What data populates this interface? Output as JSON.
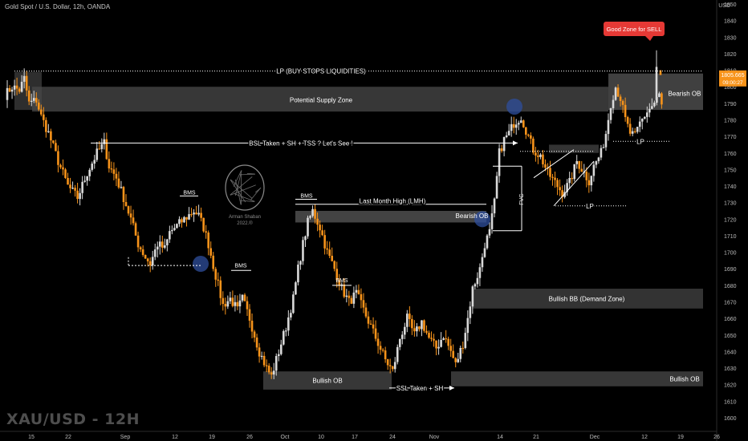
{
  "header": {
    "symbol_title": "Gold Spot / U.S. Dollar, 12h, OANDA",
    "currency": "USD"
  },
  "watermark": "XAU/USD - 12H",
  "logo": {
    "name": "brain-logo",
    "text_line1": "Arman Shaban",
    "text_line2": "2022.®"
  },
  "price_tag": {
    "value": "1805.665",
    "timer": "09:00:27",
    "color": "#f7931a"
  },
  "chart_data": {
    "type": "candlestick",
    "instrument": "Gold Spot / U.S. Dollar",
    "timeframe": "12h",
    "broker": "OANDA",
    "ylim": [
      1595,
      1855
    ],
    "y_ticks": [
      1600,
      1610,
      1620,
      1630,
      1640,
      1650,
      1660,
      1670,
      1680,
      1690,
      1700,
      1710,
      1720,
      1730,
      1740,
      1750,
      1760,
      1770,
      1780,
      1790,
      1800,
      1810,
      1820,
      1830,
      1840,
      1850
    ],
    "x_ticks": [
      "15",
      "22",
      "Sep",
      "12",
      "19",
      "26",
      "Oct",
      "10",
      "17",
      "24",
      "Nov",
      "14",
      "21",
      "Dec",
      "12",
      "19",
      "26"
    ],
    "colors": {
      "up": "#d9d9d9",
      "down": "#f7931a",
      "zone": "#4a4a4a",
      "circle": "#2f4f9e",
      "sell_label": "#e53935"
    },
    "candle_count": 200,
    "trend_path": [
      [
        0,
        1795
      ],
      [
        3,
        1800
      ],
      [
        6,
        1798
      ],
      [
        8,
        1805
      ],
      [
        10,
        1790
      ],
      [
        13,
        1792
      ],
      [
        15,
        1782
      ],
      [
        18,
        1772
      ],
      [
        22,
        1755
      ],
      [
        26,
        1740
      ],
      [
        30,
        1733
      ],
      [
        34,
        1748
      ],
      [
        38,
        1760
      ],
      [
        41,
        1766
      ],
      [
        43,
        1752
      ],
      [
        46,
        1745
      ],
      [
        49,
        1733
      ],
      [
        52,
        1720
      ],
      [
        55,
        1705
      ],
      [
        58,
        1697
      ],
      [
        60,
        1693
      ],
      [
        63,
        1705
      ],
      [
        66,
        1702
      ],
      [
        68,
        1712
      ],
      [
        71,
        1716
      ],
      [
        74,
        1720
      ],
      [
        78,
        1725
      ],
      [
        80,
        1722
      ],
      [
        82,
        1715
      ],
      [
        84,
        1705
      ],
      [
        86,
        1692
      ],
      [
        88,
        1680
      ],
      [
        90,
        1668
      ],
      [
        93,
        1672
      ],
      [
        96,
        1665
      ],
      [
        98,
        1672
      ],
      [
        101,
        1660
      ],
      [
        103,
        1650
      ],
      [
        105,
        1640
      ],
      [
        108,
        1630
      ],
      [
        110,
        1625
      ],
      [
        113,
        1640
      ],
      [
        116,
        1655
      ],
      [
        119,
        1672
      ],
      [
        121,
        1690
      ],
      [
        123,
        1705
      ],
      [
        125,
        1718
      ],
      [
        127,
        1725
      ],
      [
        130,
        1715
      ],
      [
        133,
        1700
      ],
      [
        136,
        1690
      ],
      [
        139,
        1678
      ],
      [
        142,
        1670
      ],
      [
        145,
        1675
      ],
      [
        148,
        1665
      ],
      [
        151,
        1655
      ],
      [
        154,
        1645
      ],
      [
        157,
        1635
      ],
      [
        160,
        1628
      ],
      [
        163,
        1648
      ],
      [
        166,
        1660
      ],
      [
        169,
        1650
      ],
      [
        172,
        1658
      ],
      [
        175,
        1648
      ],
      [
        178,
        1642
      ],
      [
        181,
        1650
      ],
      [
        184,
        1640
      ],
      [
        186,
        1632
      ],
      [
        189,
        1645
      ],
      [
        191,
        1660
      ],
      [
        193,
        1678
      ],
      [
        196,
        1690
      ],
      [
        198,
        1705
      ],
      [
        200,
        1712
      ],
      [
        202,
        1730
      ],
      [
        204,
        1760
      ],
      [
        206,
        1768
      ],
      [
        208,
        1772
      ],
      [
        210,
        1778
      ],
      [
        213,
        1782
      ],
      [
        216,
        1770
      ],
      [
        218,
        1762
      ],
      [
        221,
        1758
      ],
      [
        224,
        1748
      ],
      [
        227,
        1742
      ],
      [
        230,
        1736
      ],
      [
        233,
        1742
      ],
      [
        236,
        1755
      ],
      [
        239,
        1748
      ],
      [
        241,
        1743
      ],
      [
        243,
        1752
      ],
      [
        246,
        1760
      ],
      [
        248,
        1772
      ],
      [
        250,
        1790
      ],
      [
        252,
        1800
      ],
      [
        254,
        1793
      ],
      [
        256,
        1780
      ],
      [
        258,
        1772
      ],
      [
        260,
        1770
      ],
      [
        262,
        1778
      ],
      [
        265,
        1785
      ],
      [
        268,
        1790
      ],
      [
        270,
        1795
      ],
      [
        272,
        1782
      ],
      [
        274,
        1792
      ],
      [
        276,
        1812
      ],
      [
        278,
        1808
      ]
    ],
    "zones": [
      {
        "label": "Potential Supply Zone",
        "y_top": 1800,
        "y_bottom": 1785
      },
      {
        "label": "Bearish OB",
        "y_top": 1808,
        "y_bottom": 1785,
        "side": "right"
      },
      {
        "label": "Bearish OB",
        "y_top": 1725,
        "y_bottom": 1718,
        "side": "middle"
      },
      {
        "label": "Bullish BB (Demand Zone)",
        "y_top": 1677,
        "y_bottom": 1665
      },
      {
        "label": "Bullish OB",
        "y_top": 1628,
        "y_bottom": 1616,
        "side": "left"
      },
      {
        "label": "Bullish OB",
        "y_top": 1628,
        "y_bottom": 1619,
        "side": "right"
      }
    ],
    "annotations": {
      "lp_top": "LP (BUY STOPS LIQUIDITIES)",
      "bsl": "BSL Taken + SH + TSS ? Let's See !",
      "lmh": "Last Month High (LMH)",
      "ssl": "SSL Taken + SH",
      "fvg": "FVG",
      "lp": "LP",
      "bms": "BMS",
      "sell": "Good Zone for SELL"
    }
  }
}
